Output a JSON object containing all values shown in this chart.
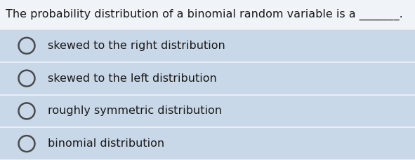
{
  "question": "The probability distribution of a binomial random variable is a _______.",
  "options": [
    "skewed to the right distribution",
    "skewed to the left distribution",
    "roughly symmetric distribution",
    "binomial distribution"
  ],
  "bg_color_question": "#f0f4f8",
  "bg_color_options": "#c8d8e8",
  "separator_color": "#e8eef4",
  "text_color": "#1a1a1a",
  "question_fontsize": 11.5,
  "option_fontsize": 11.5,
  "fig_width": 5.91,
  "fig_height": 2.29,
  "dpi": 100
}
